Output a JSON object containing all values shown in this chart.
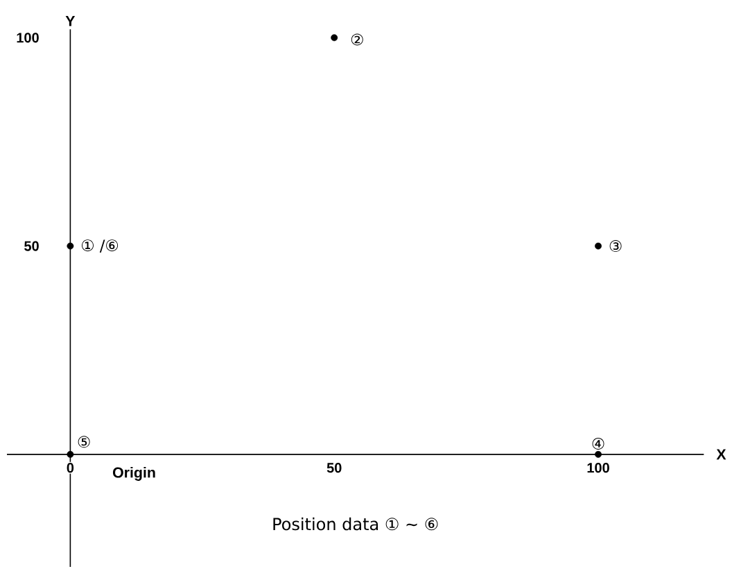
{
  "chart_data": {
    "type": "scatter",
    "x": [
      0,
      50,
      100,
      100,
      0
    ],
    "values": [
      50,
      100,
      50,
      0,
      0
    ],
    "color": "#000000",
    "xlabel": "X",
    "ylabel": "Y",
    "xlim": [
      -12,
      120
    ],
    "ylim": [
      -27,
      102
    ],
    "xticks": [
      0,
      50,
      100
    ],
    "yticks": [
      50,
      100
    ],
    "grid": false,
    "annotations": [
      {
        "text": "① /⑥",
        "x": 0,
        "y": 50
      },
      {
        "text": "②",
        "x": 50,
        "y": 100
      },
      {
        "text": "③",
        "x": 100,
        "y": 50
      },
      {
        "text": "④",
        "x": 100,
        "y": 0
      },
      {
        "text": "⑤",
        "x": 0,
        "y": 0
      },
      "Origin",
      "Position data ① ~ ⑥"
    ]
  }
}
